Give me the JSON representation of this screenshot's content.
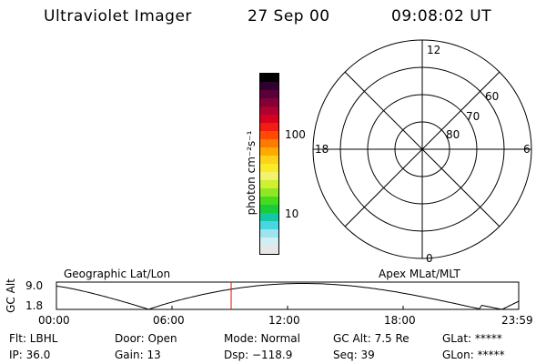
{
  "header": {
    "title": "Ultraviolet Imager",
    "date": "27 Sep 00",
    "time": "09:08:02 UT"
  },
  "colorbar": {
    "label": "photon cm⁻²s⁻¹",
    "ticks": [
      {
        "value": 100,
        "label": "100"
      },
      {
        "value": 10,
        "label": "10"
      }
    ],
    "colors": [
      "#e6e6e6",
      "#d2eef2",
      "#9ee4ec",
      "#4ad6e0",
      "#12c8a8",
      "#18cc3a",
      "#46dc1e",
      "#8ee824",
      "#cef030",
      "#f2f26e",
      "#f8ec2a",
      "#ffd21a",
      "#ffaa00",
      "#ff7a00",
      "#ff4a00",
      "#f21c10",
      "#d8001c",
      "#b00030",
      "#840038",
      "#5a0038",
      "#300030",
      "#000000"
    ]
  },
  "polar": {
    "mlt_labels": {
      "top": "12",
      "left": "18",
      "right": "6",
      "bottom": "0"
    },
    "lat_labels": [
      "80",
      "70",
      "60"
    ]
  },
  "track": {
    "axis_label": "GC Alt",
    "ymax_label": "9.0",
    "ymin_label": "1.8",
    "left_title": "Geographic Lat/Lon",
    "right_title": "Apex MLat/MLT",
    "time_ticks": [
      "00:00",
      "06:00",
      "12:00",
      "18:00",
      "23:59"
    ],
    "current_time_fraction": 0.378,
    "line_color": "#000000",
    "marker_color": "#ff0000"
  },
  "info": {
    "flt": "Flt: LBHL",
    "ip": "IP: 36.0",
    "door": "Door: Open",
    "gain": "Gain: 13",
    "mode": "Mode: Normal",
    "dsp": "Dsp: −118.9",
    "gcalt": "GC Alt: 7.5 Re",
    "seq": "Seq: 39",
    "glat": "GLat: *****",
    "glon": "GLon: *****"
  }
}
